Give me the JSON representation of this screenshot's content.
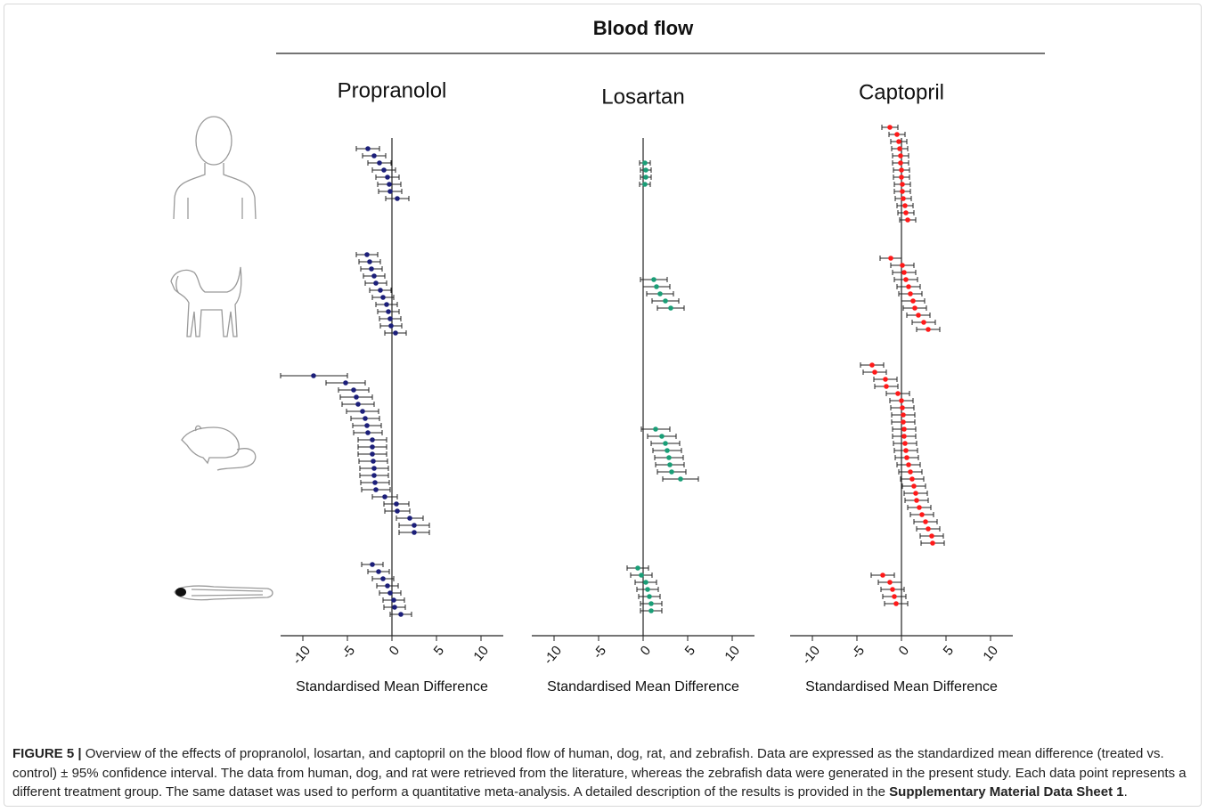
{
  "figure": {
    "title": "Blood flow"
  },
  "chart_data": [
    {
      "type": "forest",
      "title": "Propranolol",
      "xlabel": "Standardised Mean Difference",
      "xlim": [
        -12.5,
        12.5
      ],
      "xticks": [
        -10,
        -5,
        0,
        5,
        10
      ],
      "color": "#1c1f7a",
      "groups": [
        {
          "values": [
            -2.7,
            -2.0,
            -1.4,
            -0.9,
            -0.5,
            -0.3,
            -0.2,
            0.6
          ],
          "lower": [
            -4.0,
            -3.3,
            -2.7,
            -2.2,
            -1.8,
            -1.6,
            -1.5,
            -0.7
          ],
          "upper": [
            -1.4,
            -0.7,
            -0.1,
            0.4,
            0.8,
            1.0,
            1.1,
            1.9
          ]
        },
        {
          "values": [
            -2.8,
            -2.5,
            -2.3,
            -2.0,
            -1.8,
            -1.3,
            -1.0,
            -0.6,
            -0.4,
            -0.2,
            -0.1,
            0.4
          ],
          "lower": [
            -4.0,
            -3.7,
            -3.5,
            -3.2,
            -3.0,
            -2.5,
            -2.2,
            -1.8,
            -1.6,
            -1.4,
            -1.3,
            -0.8
          ],
          "upper": [
            -1.6,
            -1.3,
            -1.1,
            -0.8,
            -0.6,
            -0.1,
            0.2,
            0.6,
            0.8,
            1.0,
            1.1,
            1.6
          ]
        },
        {
          "values": [
            -8.8,
            -5.2,
            -4.3,
            -4.0,
            -3.8,
            -3.3,
            -3.0,
            -2.8,
            -2.7,
            -2.2,
            -2.2,
            -2.2,
            -2.1,
            -2.0,
            -2.0,
            -1.9,
            -1.8,
            -0.8,
            0.5,
            0.6,
            2.0,
            2.5,
            2.5
          ],
          "lower": [
            -12.5,
            -7.4,
            -6.0,
            -5.8,
            -5.6,
            -5.1,
            -4.6,
            -4.4,
            -4.3,
            -3.8,
            -3.8,
            -3.8,
            -3.7,
            -3.6,
            -3.6,
            -3.5,
            -3.4,
            -2.2,
            -0.9,
            -0.8,
            0.5,
            0.8,
            0.8
          ],
          "upper": [
            -5.0,
            -3.0,
            -2.6,
            -2.2,
            -2.0,
            -1.5,
            -1.4,
            -1.2,
            -1.1,
            -0.6,
            -0.6,
            -0.6,
            -0.5,
            -0.4,
            -0.4,
            -0.3,
            -0.2,
            0.6,
            1.9,
            2.0,
            3.5,
            4.2,
            4.2
          ]
        },
        {
          "values": [
            -2.2,
            -1.5,
            -1.0,
            -0.5,
            -0.2,
            0.2,
            0.3,
            1.0
          ],
          "lower": [
            -3.4,
            -2.7,
            -2.2,
            -1.7,
            -1.4,
            -1.0,
            -0.9,
            -0.2
          ],
          "upper": [
            -1.0,
            -0.3,
            0.2,
            0.7,
            1.0,
            1.4,
            1.5,
            2.2
          ]
        }
      ]
    },
    {
      "type": "forest",
      "title": "Losartan",
      "xlabel": "Standardised Mean Difference",
      "xlim": [
        -12.5,
        12.5
      ],
      "xticks": [
        -10,
        -5,
        0,
        5,
        10
      ],
      "color": "#1a9e77",
      "groups": [
        {
          "values": [
            0.2,
            0.3,
            0.3,
            0.2
          ],
          "lower": [
            -0.4,
            -0.3,
            -0.3,
            -0.4
          ],
          "upper": [
            0.8,
            0.9,
            0.9,
            0.8
          ]
        },
        {
          "values": [
            1.2,
            1.5,
            1.9,
            2.5,
            3.1
          ],
          "lower": [
            -0.3,
            0.0,
            0.4,
            1.0,
            1.6
          ],
          "upper": [
            2.7,
            3.0,
            3.4,
            4.0,
            4.6
          ]
        },
        {
          "values": [
            1.4,
            2.1,
            2.5,
            2.7,
            2.9,
            3.0,
            3.2,
            4.2
          ],
          "lower": [
            -0.2,
            0.5,
            0.9,
            1.1,
            1.3,
            1.4,
            1.6,
            2.2
          ],
          "upper": [
            3.0,
            3.7,
            4.1,
            4.3,
            4.5,
            4.6,
            4.8,
            6.2
          ]
        },
        {
          "values": [
            -0.6,
            -0.2,
            0.3,
            0.5,
            0.7,
            0.9,
            0.9
          ],
          "lower": [
            -1.8,
            -1.4,
            -0.9,
            -0.7,
            -0.5,
            -0.3,
            -0.3
          ],
          "upper": [
            0.6,
            1.0,
            1.5,
            1.7,
            1.9,
            2.1,
            2.1
          ]
        }
      ]
    },
    {
      "type": "forest",
      "title": "Captopril",
      "xlabel": "Standardised Mean Difference",
      "xlim": [
        -12.5,
        12.5
      ],
      "xticks": [
        -10,
        -5,
        0,
        5,
        10
      ],
      "color": "#ff1a1a",
      "groups": [
        {
          "values": [
            -1.3,
            -0.5,
            -0.3,
            -0.2,
            -0.1,
            -0.1,
            0.0,
            0.0,
            0.1,
            0.1,
            0.2,
            0.4,
            0.5,
            0.7
          ],
          "lower": [
            -2.2,
            -1.4,
            -1.2,
            -1.1,
            -1.0,
            -1.0,
            -0.9,
            -0.9,
            -0.8,
            -0.8,
            -0.7,
            -0.5,
            -0.4,
            -0.2
          ],
          "upper": [
            -0.4,
            0.4,
            0.6,
            0.7,
            0.8,
            0.8,
            0.9,
            0.9,
            1.0,
            1.0,
            1.1,
            1.3,
            1.4,
            1.6
          ]
        },
        {
          "values": [
            -1.2,
            0.1,
            0.3,
            0.5,
            0.8,
            1.0,
            1.3,
            1.5,
            1.9,
            2.5,
            3.0
          ],
          "lower": [
            -2.4,
            -1.2,
            -1.0,
            -0.8,
            -0.5,
            -0.3,
            0.0,
            0.2,
            0.6,
            1.2,
            1.7
          ],
          "upper": [
            0.0,
            1.4,
            1.6,
            1.8,
            2.1,
            2.3,
            2.6,
            2.8,
            3.2,
            3.8,
            4.3
          ]
        },
        {
          "values": [
            -3.3,
            -3.0,
            -1.8,
            -1.7,
            -0.4,
            0.0,
            0.1,
            0.2,
            0.2,
            0.3,
            0.3,
            0.4,
            0.5,
            0.6,
            0.8,
            1.0,
            1.2,
            1.4,
            1.6,
            1.7,
            2.0,
            2.3,
            2.7,
            3.0,
            3.4,
            3.5
          ],
          "lower": [
            -4.6,
            -4.3,
            -3.1,
            -3.0,
            -1.7,
            -1.3,
            -1.2,
            -1.1,
            -1.1,
            -1.0,
            -1.0,
            -0.9,
            -0.8,
            -0.7,
            -0.5,
            -0.3,
            -0.1,
            0.1,
            0.3,
            0.4,
            0.7,
            1.0,
            1.4,
            1.7,
            2.1,
            2.2
          ],
          "upper": [
            -2.0,
            -1.7,
            -0.5,
            -0.4,
            0.9,
            1.3,
            1.4,
            1.5,
            1.5,
            1.6,
            1.6,
            1.7,
            1.8,
            1.9,
            2.1,
            2.3,
            2.5,
            2.7,
            2.9,
            3.0,
            3.3,
            3.6,
            4.0,
            4.3,
            4.7,
            4.8
          ]
        },
        {
          "values": [
            -2.1,
            -1.3,
            -1.0,
            -0.8,
            -0.6
          ],
          "lower": [
            -3.4,
            -2.6,
            -2.3,
            -2.1,
            -1.9
          ],
          "upper": [
            -0.8,
            0.0,
            0.3,
            0.5,
            0.7
          ]
        }
      ]
    }
  ],
  "caption": {
    "label": "FIGURE 5 |",
    "text": " Overview of the effects of propranolol, losartan, and captopril on the blood flow of human, dog, rat, and zebrafish. Data are expressed as the standardized mean difference (treated vs. control) ± 95% confidence interval. The data from human, dog, and rat were retrieved from the literature, whereas the zebrafish data were generated in the present study. Each data point represents a different treatment group. The same dataset was used to perform a quantitative meta-analysis. A detailed description of the results is provided in the ",
    "link": "Supplementary Material Data Sheet 1",
    "end": "."
  }
}
